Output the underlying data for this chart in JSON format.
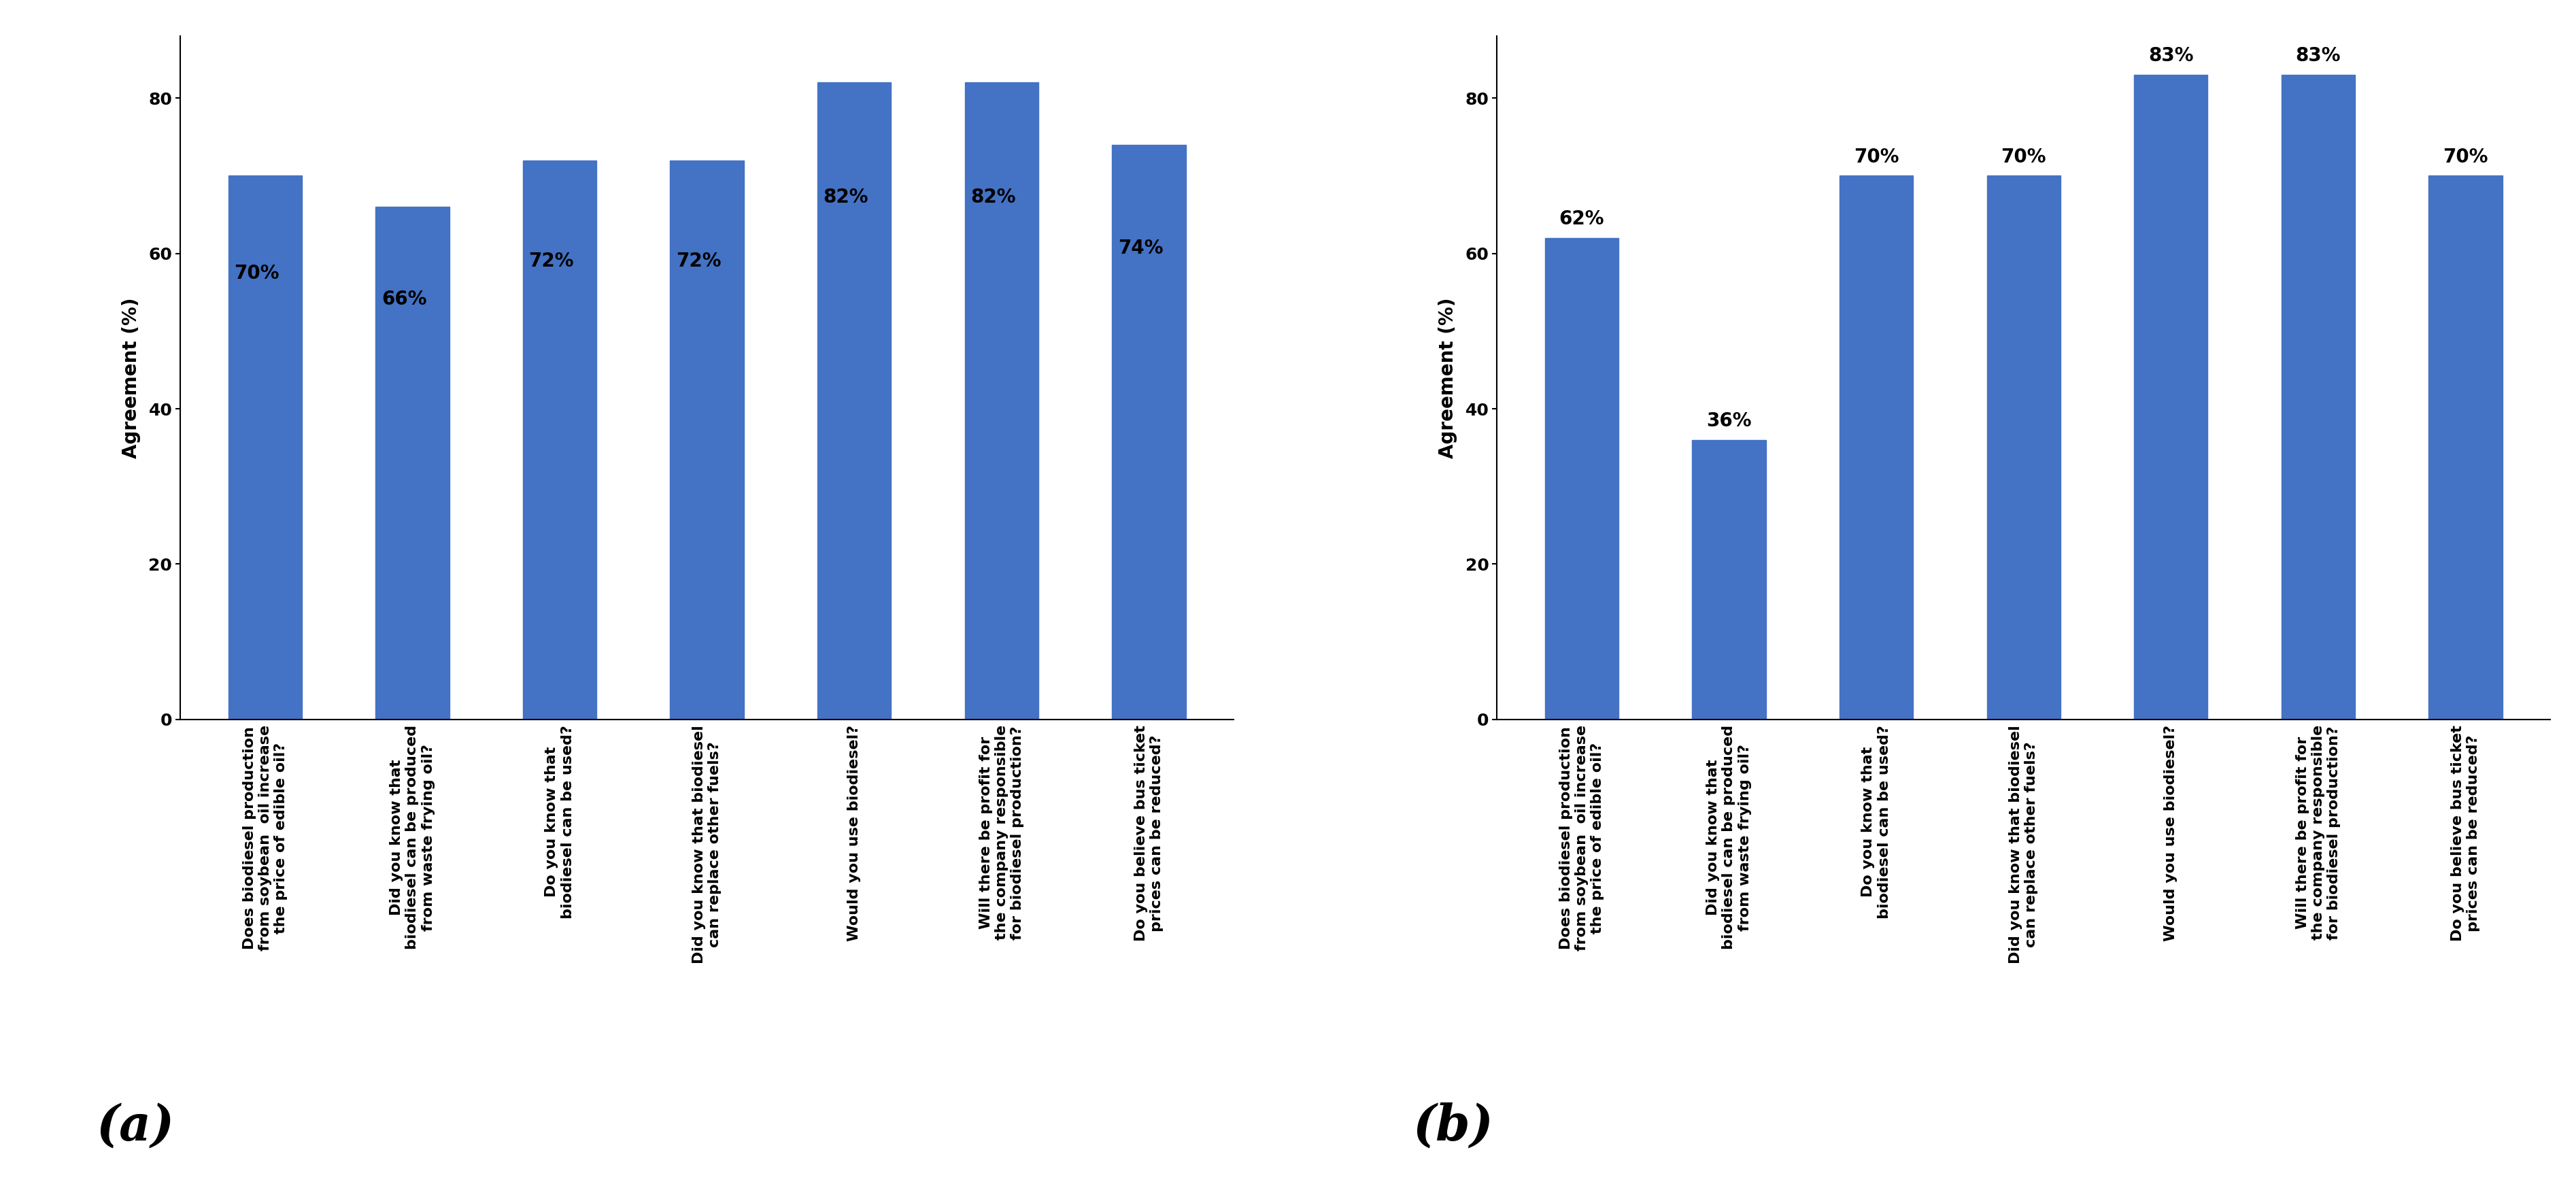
{
  "panel_a": {
    "values": [
      70,
      66,
      72,
      72,
      82,
      82,
      74
    ],
    "labels": [
      "70%",
      "66%",
      "72%",
      "72%",
      "82%",
      "82%",
      "74%"
    ],
    "categories": [
      "Does biodiesel production\nfrom soybean  oil increase\nthe price of edible oil?",
      "Did you know that\nbiodiesel can be produced\nfrom waste frying oil?",
      "Do you know that\nbiodiesel can be used?",
      "Did you know that biodiesel\ncan replace other fuels?",
      "Would you use biodiesel?",
      "Will there be profit for\nthe company responsible\nfor biodiesel production?",
      "Do you believe bus ticket\nprices can be reduced?"
    ],
    "panel_label": "(a)",
    "ylabel": "Agreement (%)",
    "ylim": [
      0,
      88
    ],
    "yticks": [
      0,
      20,
      40,
      60,
      80
    ],
    "bar_color": "#4472C4",
    "label_inside": true
  },
  "panel_b": {
    "values": [
      62,
      36,
      70,
      70,
      83,
      83,
      70
    ],
    "labels": [
      "62%",
      "36%",
      "70%",
      "70%",
      "83%",
      "83%",
      "70%"
    ],
    "categories": [
      "Does biodiesel production\nfrom soybean  oil increase\nthe price of edible oil?",
      "Did you know that\nbiodiesel can be produced\nfrom waste frying oil?",
      "Do you know that\nbiodiesel can be used?",
      "Did you know that biodiesel\ncan replace other fuels?",
      "Would you use biodiesel?",
      "Will there be profit for\nthe company responsible\nfor biodiesel production?",
      "Do you believe bus ticket\nprices can be reduced?"
    ],
    "panel_label": "(b)",
    "ylabel": "Agreement (%)",
    "ylim": [
      0,
      88
    ],
    "yticks": [
      0,
      20,
      40,
      60,
      80
    ],
    "bar_color": "#4472C4",
    "label_inside": false
  },
  "background_color": "#ffffff",
  "xticklabel_fontsize": 16,
  "ytick_fontsize": 18,
  "ylabel_fontsize": 20,
  "panel_label_fontsize": 52,
  "bar_label_fontsize": 20,
  "bar_width": 0.5
}
